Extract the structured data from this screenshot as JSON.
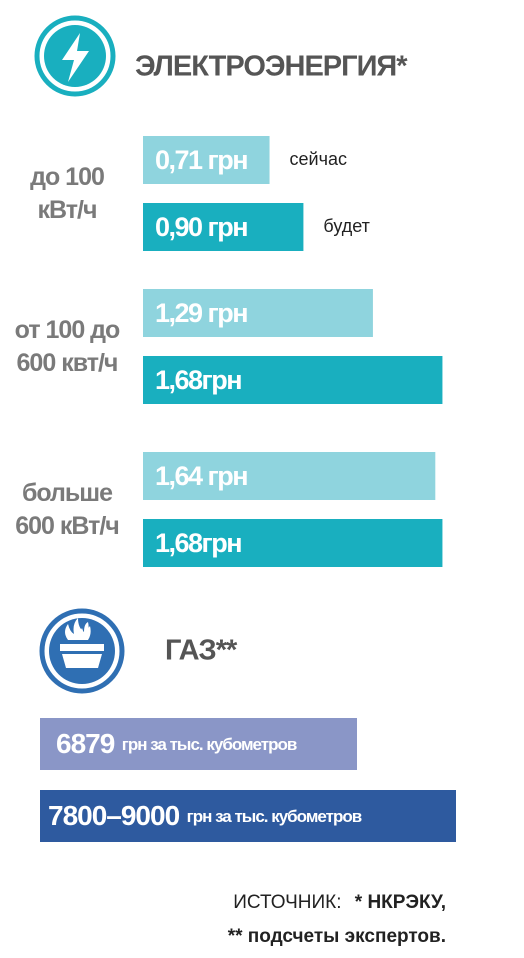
{
  "chart_data": {
    "type": "bar",
    "orientation": "horizontal",
    "title": "ЭЛЕКТРОЭНЕРГИЯ*",
    "categories": [
      "до 100 кВт/ч",
      "от 100 до 600 квт/ч",
      "больше 600 кВт/ч"
    ],
    "series": [
      {
        "name": "сейчас",
        "color": "#8fd4de",
        "values": [
          0.71,
          1.29,
          1.64
        ],
        "value_labels": [
          "0,71 грн",
          "1,29 грн",
          "1,64 грн"
        ]
      },
      {
        "name": "будет",
        "color": "#19afbf",
        "values": [
          0.9,
          1.68,
          1.68
        ],
        "value_labels": [
          "0,90 грн",
          "1,68грн",
          "1,68грн"
        ]
      }
    ],
    "xlim": [
      0,
      1.7
    ]
  },
  "gas": {
    "title": "ГАЗ**",
    "items": [
      {
        "amount": "6879",
        "unit": "грн за тыс. кубометров"
      },
      {
        "amount": "7800–9000",
        "unit": "грн за тыс. кубометров"
      }
    ]
  },
  "source": {
    "label": "ИСТОЧНИК:",
    "line1": "* НКРЭКУ,",
    "line2": "** подсчеты экспертов."
  }
}
